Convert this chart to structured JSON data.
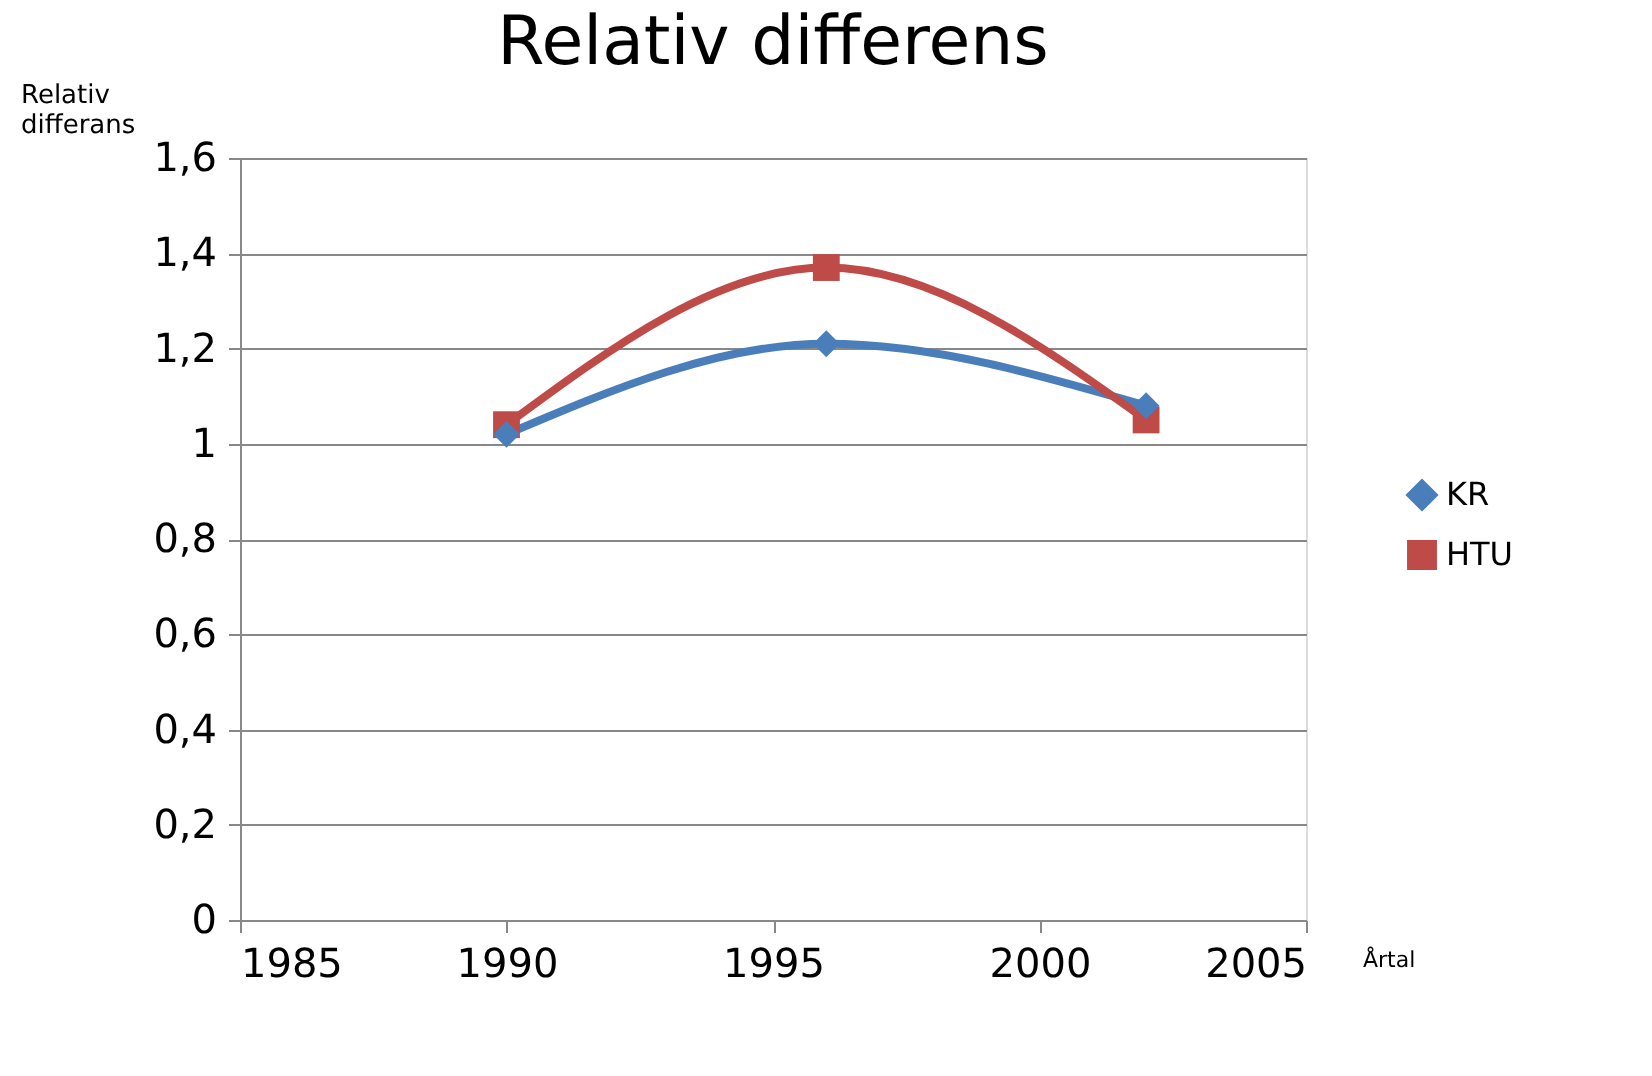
{
  "chart_data": {
    "type": "line",
    "title": "Relativ differens",
    "ylabel": "Relativ\ndifferans",
    "xlabel": "Årtal",
    "x": [
      1990,
      1996,
      2002
    ],
    "series": [
      {
        "name": "KR",
        "color": "#4a7ebb",
        "marker": "diamond",
        "values": [
          1.02,
          1.21,
          1.08
        ]
      },
      {
        "name": "HTU",
        "color": "#be4b48",
        "marker": "square",
        "values": [
          1.04,
          1.37,
          1.05
        ]
      }
    ],
    "xlim": [
      1985,
      2005
    ],
    "xticks": [
      1985,
      1990,
      1995,
      2000,
      2005
    ],
    "ylim": [
      0,
      1.6
    ],
    "yticks": [
      0,
      {
        "value": 0.2,
        "label": "0,2"
      },
      {
        "value": 0.4,
        "label": "0,4"
      },
      {
        "value": 0.6,
        "label": "0,6"
      },
      {
        "value": 0.8,
        "label": "0,8"
      },
      1,
      {
        "value": 1.2,
        "label": "1,2"
      },
      {
        "value": 1.4,
        "label": "1,4"
      },
      {
        "value": 1.6,
        "label": "1,6"
      }
    ],
    "grid": "y",
    "legend": "right",
    "line_style": "solid"
  }
}
